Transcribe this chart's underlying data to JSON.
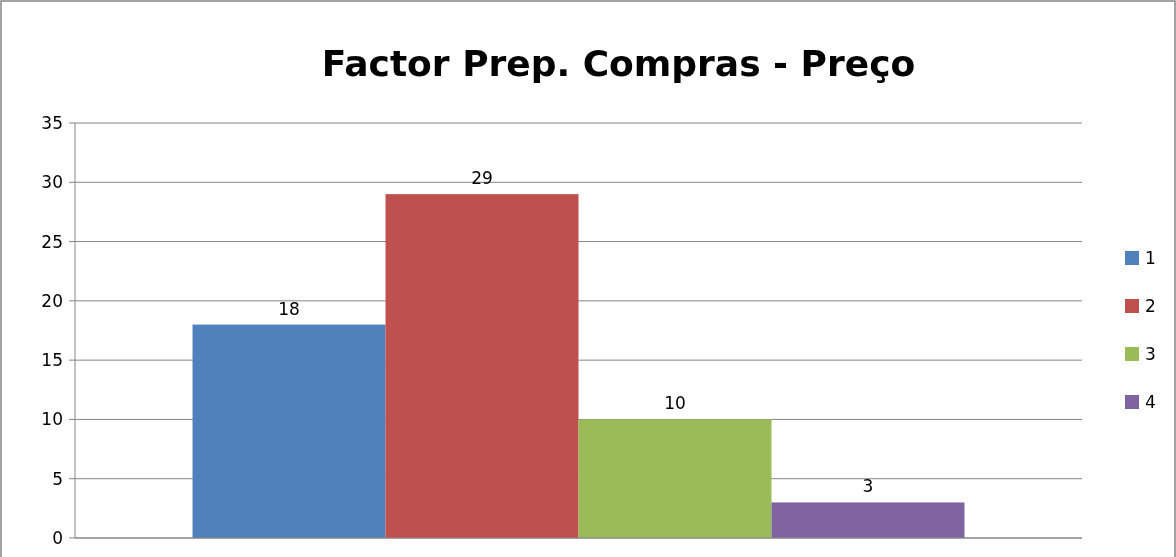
{
  "chart_data": {
    "type": "bar",
    "title": "Factor Prep. Compras - Preço",
    "categories": [
      null
    ],
    "series": [
      {
        "name": "1",
        "color": "#4f81bd",
        "values": [
          18
        ]
      },
      {
        "name": "2",
        "color": "#c0504d",
        "values": [
          29
        ]
      },
      {
        "name": "3",
        "color": "#9bbb59",
        "values": [
          10
        ]
      },
      {
        "name": "4",
        "color": "#8064a2",
        "values": [
          3
        ]
      }
    ],
    "ylim": [
      0,
      35
    ],
    "yticks": [
      0,
      5,
      10,
      15,
      20,
      25,
      30,
      35
    ],
    "grid": "y",
    "legend": "right",
    "data_labels": true
  }
}
